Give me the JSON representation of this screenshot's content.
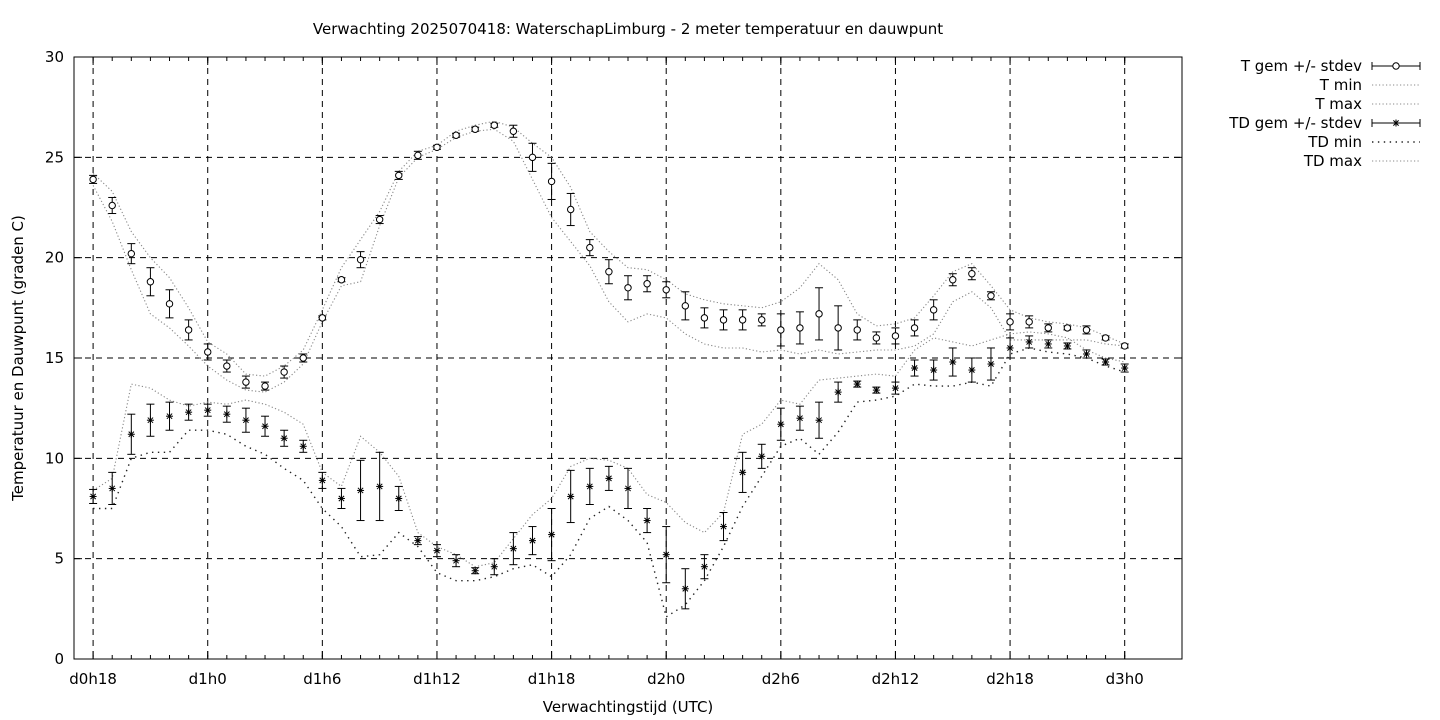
{
  "chart_data": {
    "type": "line",
    "title": "Verwachting 2025070418: WaterschapLimburg - 2 meter temperatuur en dauwpunt",
    "xlabel": "Verwachtingstijd (UTC)",
    "ylabel": "Temperatuur en Dauwpunt (graden C)",
    "x_unit": "forecast hour (0 = d0h18)",
    "xlim": [
      -1,
      57
    ],
    "ylim": [
      0,
      30
    ],
    "y_ticks": [
      0,
      5,
      10,
      15,
      20,
      25,
      30
    ],
    "x_ticks": [
      {
        "x": 0,
        "label": "d0h18"
      },
      {
        "x": 6,
        "label": "d1h0"
      },
      {
        "x": 12,
        "label": "d1h6"
      },
      {
        "x": 18,
        "label": "d1h12"
      },
      {
        "x": 24,
        "label": "d1h18"
      },
      {
        "x": 30,
        "label": "d2h0"
      },
      {
        "x": 36,
        "label": "d2h6"
      },
      {
        "x": 42,
        "label": "d2h12"
      },
      {
        "x": 48,
        "label": "d2h18"
      },
      {
        "x": 54,
        "label": "d3h0"
      }
    ],
    "grid": true,
    "legend_position": "outside-top-right",
    "legend": [
      {
        "label": "T gem +/- stdev",
        "style": "errorbar-circle"
      },
      {
        "label": "T min",
        "style": "dotted"
      },
      {
        "label": "T max",
        "style": "dotted"
      },
      {
        "label": "TD gem +/- stdev",
        "style": "errorbar-star"
      },
      {
        "label": "TD min",
        "style": "dotted-coarse"
      },
      {
        "label": "TD max",
        "style": "dotted"
      }
    ],
    "x": [
      0,
      1,
      2,
      3,
      4,
      5,
      6,
      7,
      8,
      9,
      10,
      11,
      12,
      13,
      14,
      15,
      16,
      17,
      18,
      19,
      20,
      21,
      22,
      23,
      24,
      25,
      26,
      27,
      28,
      29,
      30,
      31,
      32,
      33,
      34,
      35,
      36,
      37,
      38,
      39,
      40,
      41,
      42,
      43,
      44,
      45,
      46,
      47,
      48,
      49,
      50,
      51,
      52,
      53,
      54
    ],
    "series": [
      {
        "name": "T gem +/- stdev",
        "values": [
          23.9,
          22.6,
          20.2,
          18.8,
          17.7,
          16.4,
          15.3,
          14.6,
          13.8,
          13.6,
          14.3,
          15.0,
          17.0,
          18.9,
          19.9,
          21.9,
          24.1,
          25.1,
          25.5,
          26.1,
          26.4,
          26.6,
          26.3,
          25.0,
          23.8,
          22.4,
          20.5,
          19.3,
          18.5,
          18.7,
          18.4,
          17.6,
          17.0,
          16.9,
          16.9,
          16.9,
          16.4,
          16.5,
          17.2,
          16.5,
          16.4,
          16.0,
          16.1,
          16.5,
          17.4,
          18.9,
          19.2,
          18.1,
          16.8,
          16.8,
          16.5,
          16.5,
          16.4,
          16.0,
          15.6
        ],
        "stdev": [
          0.2,
          0.4,
          0.5,
          0.7,
          0.7,
          0.5,
          0.4,
          0.3,
          0.3,
          0.2,
          0.3,
          0.2,
          0.1,
          0.1,
          0.4,
          0.2,
          0.2,
          0.2,
          0.1,
          0.1,
          0.1,
          0.1,
          0.3,
          0.7,
          0.9,
          0.8,
          0.4,
          0.6,
          0.6,
          0.4,
          0.4,
          0.7,
          0.5,
          0.5,
          0.5,
          0.3,
          0.8,
          0.8,
          1.3,
          1.1,
          0.5,
          0.3,
          0.4,
          0.4,
          0.5,
          0.3,
          0.3,
          0.2,
          0.4,
          0.3,
          0.2,
          0.1,
          0.2,
          0.1,
          0.1
        ]
      },
      {
        "name": "T min",
        "values": [
          23.6,
          21.8,
          19.4,
          17.2,
          16.5,
          15.6,
          14.6,
          13.9,
          13.4,
          13.3,
          13.8,
          14.7,
          16.8,
          18.6,
          18.8,
          21.6,
          24.0,
          25.0,
          25.4,
          26.0,
          26.3,
          26.4,
          25.8,
          23.9,
          22.0,
          20.8,
          19.6,
          17.8,
          16.8,
          17.2,
          17.0,
          16.2,
          15.7,
          15.5,
          15.5,
          15.3,
          15.4,
          15.2,
          15.4,
          15.2,
          15.3,
          15.4,
          15.4,
          15.6,
          16.2,
          17.8,
          18.3,
          17.5,
          15.9,
          15.9,
          15.9,
          15.9,
          15.9,
          15.7,
          15.6
        ]
      },
      {
        "name": "T max",
        "values": [
          24.2,
          23.3,
          21.3,
          20.0,
          19.0,
          17.5,
          15.8,
          15.2,
          14.2,
          14.1,
          14.6,
          15.4,
          17.4,
          19.5,
          20.9,
          22.3,
          24.3,
          25.3,
          25.6,
          26.3,
          26.6,
          26.8,
          26.5,
          25.7,
          25.0,
          23.5,
          21.3,
          20.3,
          19.5,
          19.4,
          18.9,
          18.2,
          17.9,
          17.7,
          17.6,
          17.5,
          17.8,
          18.5,
          19.7,
          18.9,
          17.2,
          16.6,
          16.7,
          17.0,
          18.1,
          19.3,
          19.7,
          18.6,
          17.4,
          17.0,
          16.8,
          16.7,
          16.5,
          16.1,
          15.7
        ]
      },
      {
        "name": "TD gem +/- stdev",
        "values": [
          8.1,
          8.5,
          11.2,
          11.9,
          12.1,
          12.3,
          12.4,
          12.2,
          11.9,
          11.6,
          11.0,
          10.6,
          8.9,
          8.0,
          8.4,
          8.6,
          8.0,
          5.9,
          5.4,
          4.9,
          4.4,
          4.6,
          5.5,
          5.9,
          6.2,
          8.1,
          8.6,
          9.0,
          8.5,
          6.9,
          5.2,
          3.5,
          4.6,
          6.6,
          9.3,
          10.1,
          11.7,
          12.0,
          11.9,
          13.3,
          13.7,
          13.4,
          13.5,
          14.5,
          14.4,
          14.8,
          14.4,
          14.7,
          15.5,
          15.8,
          15.7,
          15.6,
          15.2,
          14.8,
          14.5
        ]
      },
      {
        "name": "TD min",
        "values": [
          7.5,
          7.5,
          10.0,
          10.3,
          10.3,
          11.4,
          11.4,
          11.2,
          10.6,
          10.2,
          9.5,
          8.9,
          7.5,
          6.6,
          5.1,
          5.2,
          6.3,
          5.6,
          4.3,
          3.9,
          3.9,
          4.1,
          4.5,
          4.7,
          4.1,
          5.2,
          7.0,
          7.6,
          6.9,
          5.8,
          2.1,
          2.7,
          3.9,
          5.6,
          7.6,
          9.1,
          10.6,
          11.0,
          10.2,
          11.3,
          12.8,
          12.9,
          13.1,
          13.7,
          13.6,
          13.6,
          13.8,
          13.6,
          15.2,
          15.5,
          15.3,
          15.2,
          15.0,
          14.6,
          14.3
        ]
      },
      {
        "name": "TD max",
        "values": [
          8.4,
          9.0,
          13.7,
          13.5,
          12.9,
          12.6,
          12.8,
          12.7,
          12.9,
          12.7,
          12.3,
          11.7,
          9.3,
          8.6,
          11.1,
          10.3,
          9.1,
          6.3,
          5.6,
          5.2,
          4.6,
          4.8,
          6.0,
          7.2,
          8.0,
          9.6,
          10.0,
          9.9,
          9.5,
          8.2,
          7.8,
          6.8,
          6.3,
          7.3,
          11.2,
          11.7,
          12.9,
          12.7,
          13.9,
          14.0,
          14.1,
          14.2,
          14.1,
          15.4,
          16.0,
          15.8,
          15.6,
          15.9,
          16.2,
          16.3,
          16.2,
          16.0,
          15.4,
          15.0,
          14.8
        ]
      }
    ]
  }
}
